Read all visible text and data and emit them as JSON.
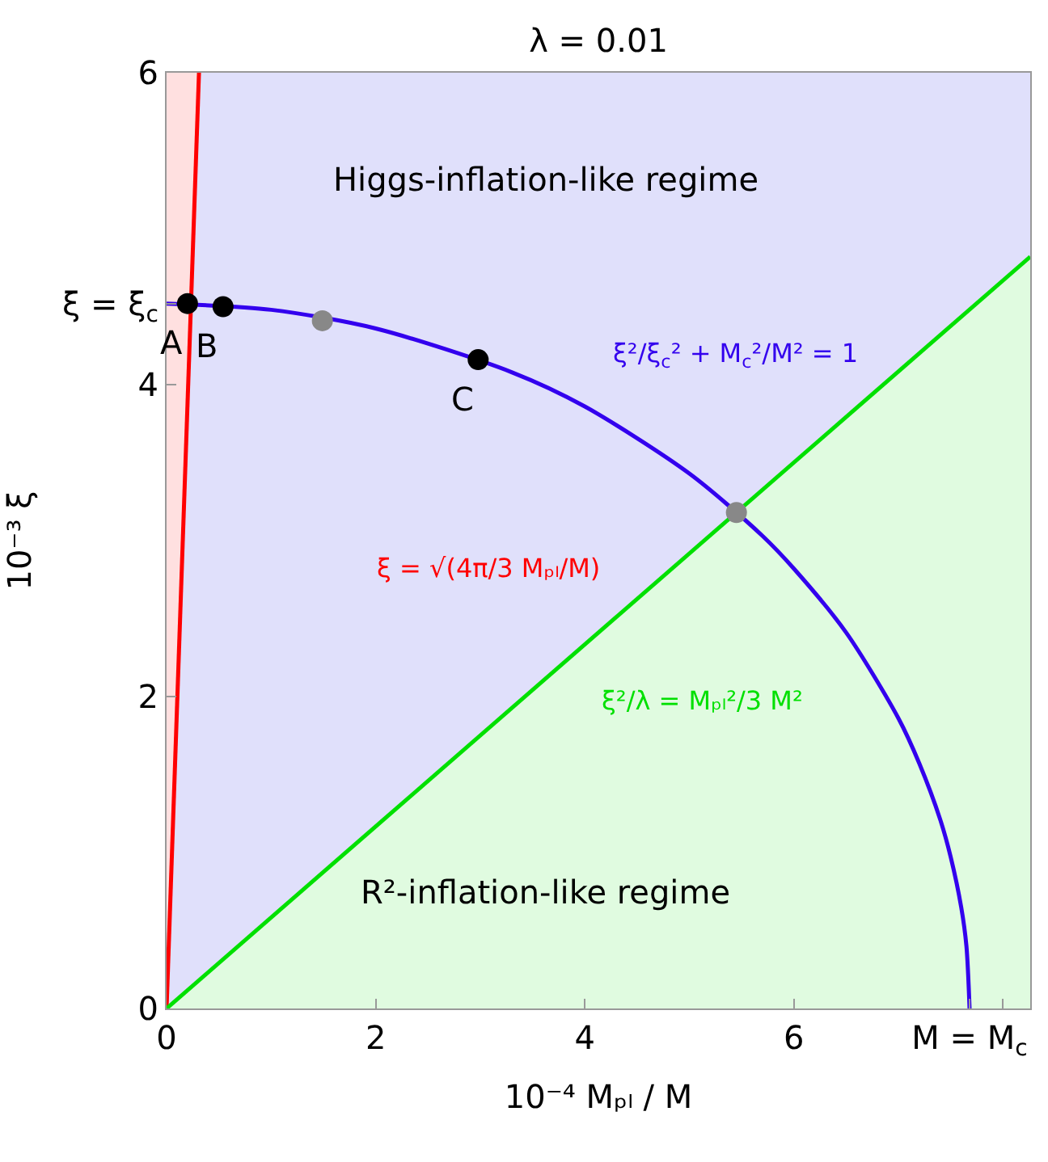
{
  "chart_data": {
    "type": "scatter",
    "title": "λ = 0.01",
    "xlabel": "10⁻⁴ Mₚₗ / M",
    "ylabel": "10⁻³ ξ",
    "xlim": [
      0,
      8.26
    ],
    "ylim": [
      0,
      6
    ],
    "xticks": [
      0,
      2,
      4,
      6,
      {
        "value": 7.68,
        "label": "M = M$_{c}$"
      },
      {
        "value": 8,
        "label": null
      }
    ],
    "yticks": [
      0,
      2,
      4,
      6,
      {
        "value": 4.52,
        "label": "ξ = ξ$_{c}$"
      }
    ],
    "grid": false,
    "line_style": "solid",
    "bands": [
      {
        "axis": "y",
        "from": 0,
        "to": 6,
        "color": "#e0e0fb"
      }
    ],
    "series": [
      {
        "name": "ξ = √(4π/3 Mₚₗ/M)",
        "type": "line",
        "color": "#ff0000",
        "x": [
          0,
          0.31
        ],
        "values": [
          0,
          6
        ],
        "lower": [
          0,
          6
        ],
        "upper": [
          6,
          6
        ]
      },
      {
        "name": "ξ²/ξ$_{c}$² + M$_{c}$²/M² = 1",
        "type": "line",
        "color": "#3300ee",
        "x": [
          0,
          1,
          2,
          3.3,
          4,
          5,
          5.7,
          6,
          6.5,
          7,
          7.2,
          7.4,
          7.5,
          7.6,
          7.65,
          7.68
        ],
        "values": [
          4.52,
          4.48,
          4.36,
          4.08,
          3.86,
          3.43,
          3.03,
          2.82,
          2.41,
          1.86,
          1.57,
          1.21,
          0.97,
          0.65,
          0.4,
          0
        ]
      },
      {
        "name": "ξ²/λ = Mₚₗ²/3 M²",
        "type": "line",
        "color": "#00e000",
        "x": [
          0,
          8.26
        ],
        "values": [
          0,
          4.82
        ],
        "lower": [
          0,
          0
        ],
        "upper": [
          0,
          4.82
        ]
      },
      {
        "color": "#000000",
        "x": [
          0.2,
          0.54,
          2.98
        ],
        "values": [
          4.52,
          4.5,
          4.16
        ]
      },
      {
        "color": "#888888",
        "x": [
          1.49,
          5.45
        ],
        "values": [
          4.41,
          3.18
        ]
      }
    ],
    "annotations": [
      "Higgs-inflation-like regime",
      "R²-inflation-like regime",
      {
        "text": "A",
        "x": 0.2,
        "y": 4.52
      },
      {
        "text": "B",
        "x": 0.54,
        "y": 4.5
      },
      {
        "text": "C",
        "x": 2.98,
        "y": 4.16
      }
    ]
  }
}
